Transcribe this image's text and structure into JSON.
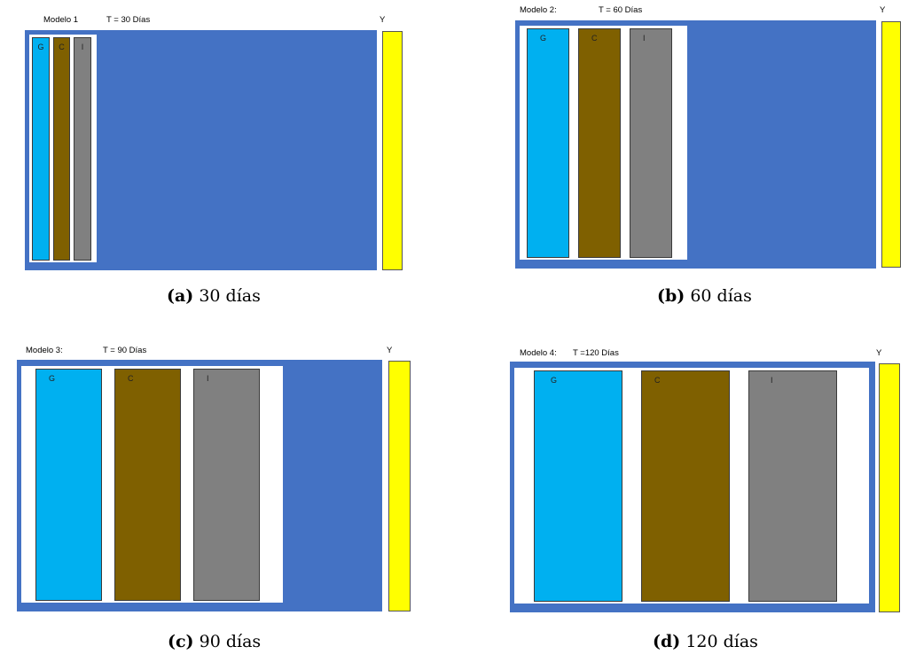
{
  "panels": [
    {
      "model": "Modelo 1",
      "time": "T = 30 Días",
      "y": "Y",
      "bars": [
        "G",
        "C",
        "I"
      ],
      "caption_tag": "(a)",
      "caption_text": "30 días"
    },
    {
      "model": "Modelo 2:",
      "time": "T = 60 Días",
      "y": "Y",
      "bars": [
        "G",
        "C",
        "I"
      ],
      "caption_tag": "(b)",
      "caption_text": "60 días"
    },
    {
      "model": "Modelo 3:",
      "time": "T = 90 Días",
      "y": "Y",
      "bars": [
        "G",
        "C",
        "I"
      ],
      "caption_tag": "(c)",
      "caption_text": "90 días"
    },
    {
      "model": "Modelo 4:",
      "time": "T =120 Días",
      "y": "Y",
      "bars": [
        "G",
        "C",
        "I"
      ],
      "caption_tag": "(d)",
      "caption_text": "120 días"
    }
  ],
  "colors": {
    "background_box": "#4472C4",
    "G": "#00B0F0",
    "C": "#7F6000",
    "I": "#808080",
    "Y": "#FFFF00"
  }
}
